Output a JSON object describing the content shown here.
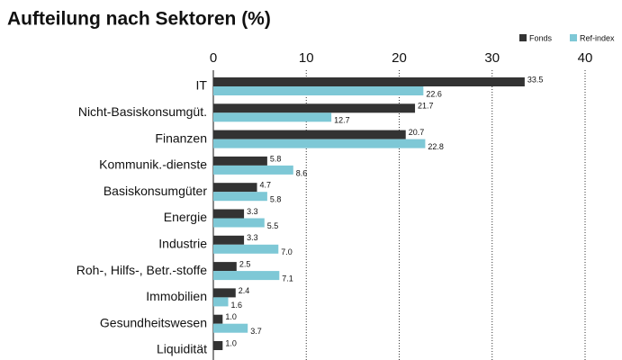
{
  "chart_data": {
    "type": "barh",
    "title": "Aufteilung nach Sektoren (%)",
    "categories": [
      "IT",
      "Nicht-Basiskonsumgüt.",
      "Finanzen",
      "Kommunik.-dienste",
      "Basiskonsumgüter",
      "Energie",
      "Industrie",
      "Roh-, Hilfs-, Betr.-stoffe",
      "Immobilien",
      "Gesundheitswesen",
      "Liquidität"
    ],
    "series": [
      {
        "name": "Fonds",
        "color": "#333333",
        "values": [
          33.5,
          21.7,
          20.7,
          5.8,
          4.7,
          3.3,
          3.3,
          2.5,
          2.4,
          1.0,
          1.0
        ],
        "value_labels": [
          "33.5",
          "21.7",
          "20.7",
          "5.8",
          "4.7",
          "3.3",
          "3.3",
          "2.5",
          "2.4",
          "1.0",
          "1.0"
        ]
      },
      {
        "name": "Ref-index",
        "color": "#7ec8d6",
        "values": [
          22.6,
          12.7,
          22.8,
          8.6,
          5.8,
          5.5,
          7.0,
          7.1,
          1.6,
          3.7,
          null
        ],
        "value_labels": [
          "22.6",
          "12.7",
          "22.8",
          "8.6",
          "5.8",
          "5.5",
          "7.0",
          "7.1",
          "1.6",
          "3.7",
          null
        ]
      }
    ],
    "xlim": [
      0,
      40
    ],
    "xticks": [
      0,
      10,
      20,
      30,
      40
    ],
    "grid": true,
    "legend": "top-right"
  }
}
